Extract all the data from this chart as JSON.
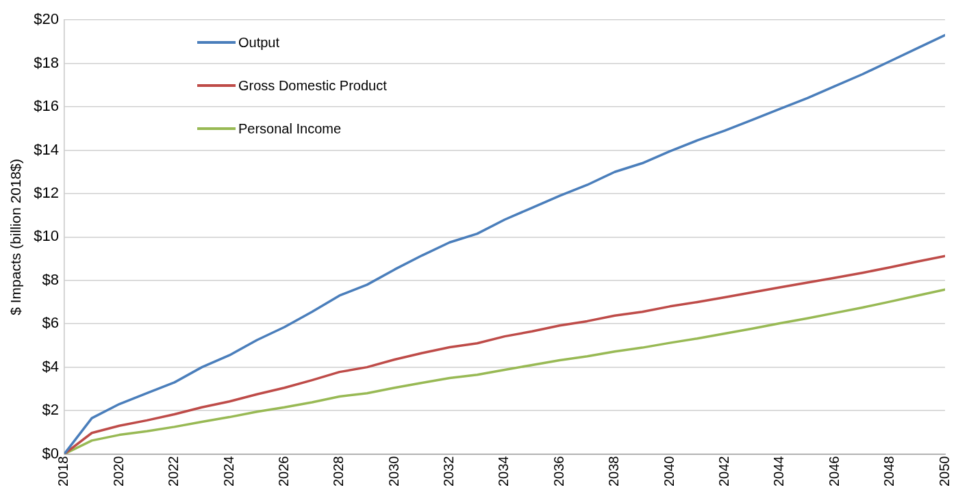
{
  "chart_data": {
    "type": "line",
    "ylabel": "$ Impacts (billion 2018$)",
    "x": [
      2018,
      2019,
      2020,
      2021,
      2022,
      2023,
      2024,
      2025,
      2026,
      2027,
      2028,
      2029,
      2030,
      2031,
      2032,
      2033,
      2034,
      2035,
      2036,
      2037,
      2038,
      2039,
      2040,
      2041,
      2042,
      2043,
      2044,
      2045,
      2046,
      2047,
      2048,
      2049,
      2050
    ],
    "series": [
      {
        "name": "Output",
        "color": "#4a7ebb",
        "values": [
          0,
          1.65,
          2.3,
          2.8,
          3.3,
          4.0,
          4.55,
          5.25,
          5.85,
          6.55,
          7.3,
          7.8,
          8.5,
          9.15,
          9.75,
          10.15,
          10.8,
          11.35,
          11.9,
          12.4,
          13.0,
          13.4,
          13.95,
          14.45,
          14.9,
          15.4,
          15.9,
          16.4,
          16.95,
          17.5,
          18.1,
          18.7,
          19.3
        ]
      },
      {
        "name": "Gross Domestic Product",
        "color": "#be4b48",
        "values": [
          0,
          0.97,
          1.3,
          1.55,
          1.83,
          2.15,
          2.42,
          2.75,
          3.05,
          3.4,
          3.78,
          4.0,
          4.35,
          4.65,
          4.92,
          5.1,
          5.42,
          5.65,
          5.92,
          6.12,
          6.38,
          6.55,
          6.8,
          7.0,
          7.22,
          7.45,
          7.68,
          7.9,
          8.12,
          8.35,
          8.6,
          8.87,
          9.12
        ]
      },
      {
        "name": "Personal Income",
        "color": "#98b954",
        "values": [
          0,
          0.62,
          0.88,
          1.05,
          1.25,
          1.48,
          1.7,
          1.95,
          2.15,
          2.38,
          2.65,
          2.8,
          3.05,
          3.28,
          3.5,
          3.65,
          3.88,
          4.1,
          4.32,
          4.5,
          4.72,
          4.9,
          5.12,
          5.32,
          5.55,
          5.78,
          6.02,
          6.25,
          6.5,
          6.75,
          7.02,
          7.3,
          7.58
        ]
      }
    ],
    "xlim": [
      2018,
      2050
    ],
    "xticks": [
      2018,
      2020,
      2022,
      2024,
      2026,
      2028,
      2030,
      2032,
      2034,
      2036,
      2038,
      2040,
      2042,
      2044,
      2046,
      2048,
      2050
    ],
    "ylim": [
      0,
      20
    ],
    "yticks": [
      {
        "value": 0,
        "label": "$0"
      },
      {
        "value": 2,
        "label": "$2"
      },
      {
        "value": 4,
        "label": "$4"
      },
      {
        "value": 6,
        "label": "$6"
      },
      {
        "value": 8,
        "label": "$8"
      },
      {
        "value": 10,
        "label": "$10"
      },
      {
        "value": 12,
        "label": "$12"
      },
      {
        "value": 14,
        "label": "$14"
      },
      {
        "value": 16,
        "label": "$16"
      },
      {
        "value": 18,
        "label": "$18"
      },
      {
        "value": 20,
        "label": "$20"
      }
    ],
    "grid": "y",
    "legend": "top left",
    "marker": "none",
    "line_style": "solid"
  }
}
